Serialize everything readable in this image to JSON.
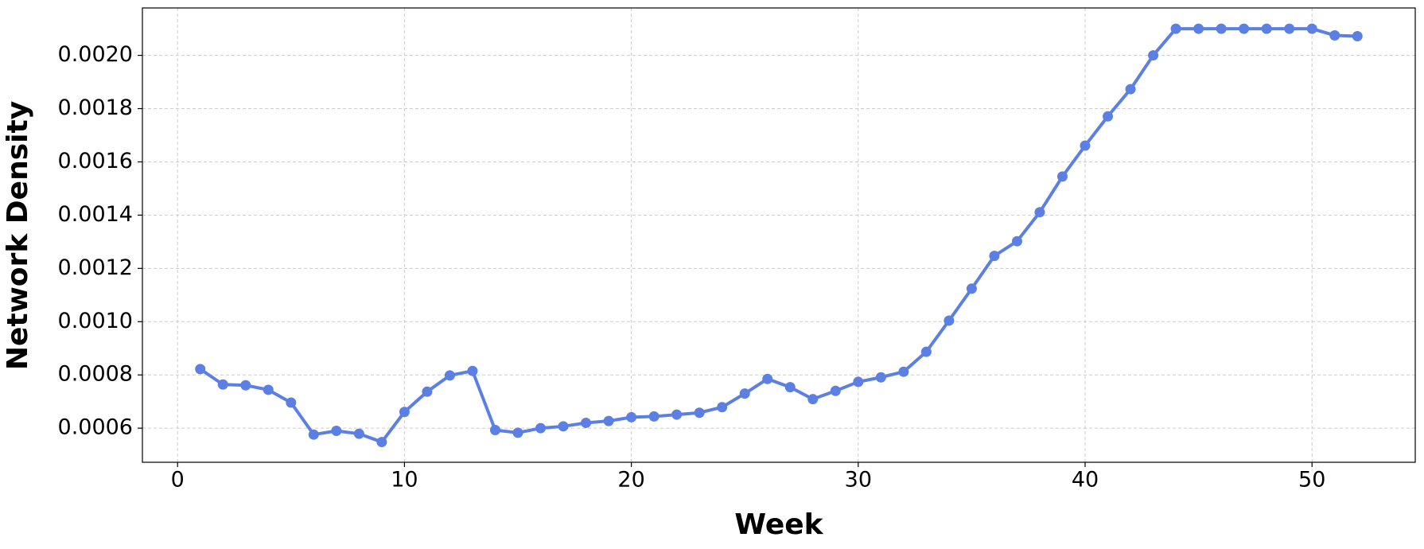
{
  "chart_data": {
    "type": "line",
    "x_label": "Week",
    "y_label": "Network Density",
    "x": [
      1,
      2,
      3,
      4,
      5,
      6,
      7,
      8,
      9,
      10,
      11,
      12,
      13,
      14,
      15,
      16,
      17,
      18,
      19,
      20,
      21,
      22,
      23,
      24,
      25,
      26,
      27,
      28,
      29,
      30,
      31,
      32,
      33,
      34,
      35,
      36,
      37,
      38,
      39,
      40,
      41,
      42,
      43,
      44,
      45,
      46,
      47,
      48,
      49,
      50,
      51,
      52
    ],
    "series": [
      {
        "color": "#5b7fe3",
        "values": [
          0.000822,
          0.000764,
          0.000761,
          0.000744,
          0.000696,
          0.000576,
          0.00059,
          0.000579,
          0.000548,
          0.000661,
          0.000737,
          0.000798,
          0.000815,
          0.000593,
          0.000583,
          0.0006,
          0.000607,
          0.00062,
          0.000627,
          0.000641,
          0.000644,
          0.000651,
          0.000658,
          0.000679,
          0.00073,
          0.000785,
          0.000754,
          0.000709,
          0.00074,
          0.000774,
          0.000791,
          0.000812,
          0.000887,
          0.001004,
          0.001124,
          0.001247,
          0.001302,
          0.001411,
          0.001545,
          0.001661,
          0.001771,
          0.001873,
          0.002,
          0.0021,
          0.0021,
          0.0021,
          0.0021,
          0.0021,
          0.0021,
          0.0021,
          0.002075,
          0.002072
        ]
      }
    ],
    "xlim": [
      -1.55,
      54.55
    ],
    "xticks": [
      0,
      10,
      20,
      30,
      40,
      50
    ],
    "ylim": [
      0.000472,
      0.002178
    ],
    "yticks": [
      {
        "value": 0.0006,
        "label": "0.0006"
      },
      {
        "value": 0.0008,
        "label": "0.0008"
      },
      {
        "value": 0.001,
        "label": "0.0010"
      },
      {
        "value": 0.0012,
        "label": "0.0012"
      },
      {
        "value": 0.0014,
        "label": "0.0014"
      },
      {
        "value": 0.0016,
        "label": "0.0016"
      },
      {
        "value": 0.0018,
        "label": "0.0018"
      },
      {
        "value": 0.002,
        "label": "0.0020"
      }
    ],
    "grid": true
  }
}
